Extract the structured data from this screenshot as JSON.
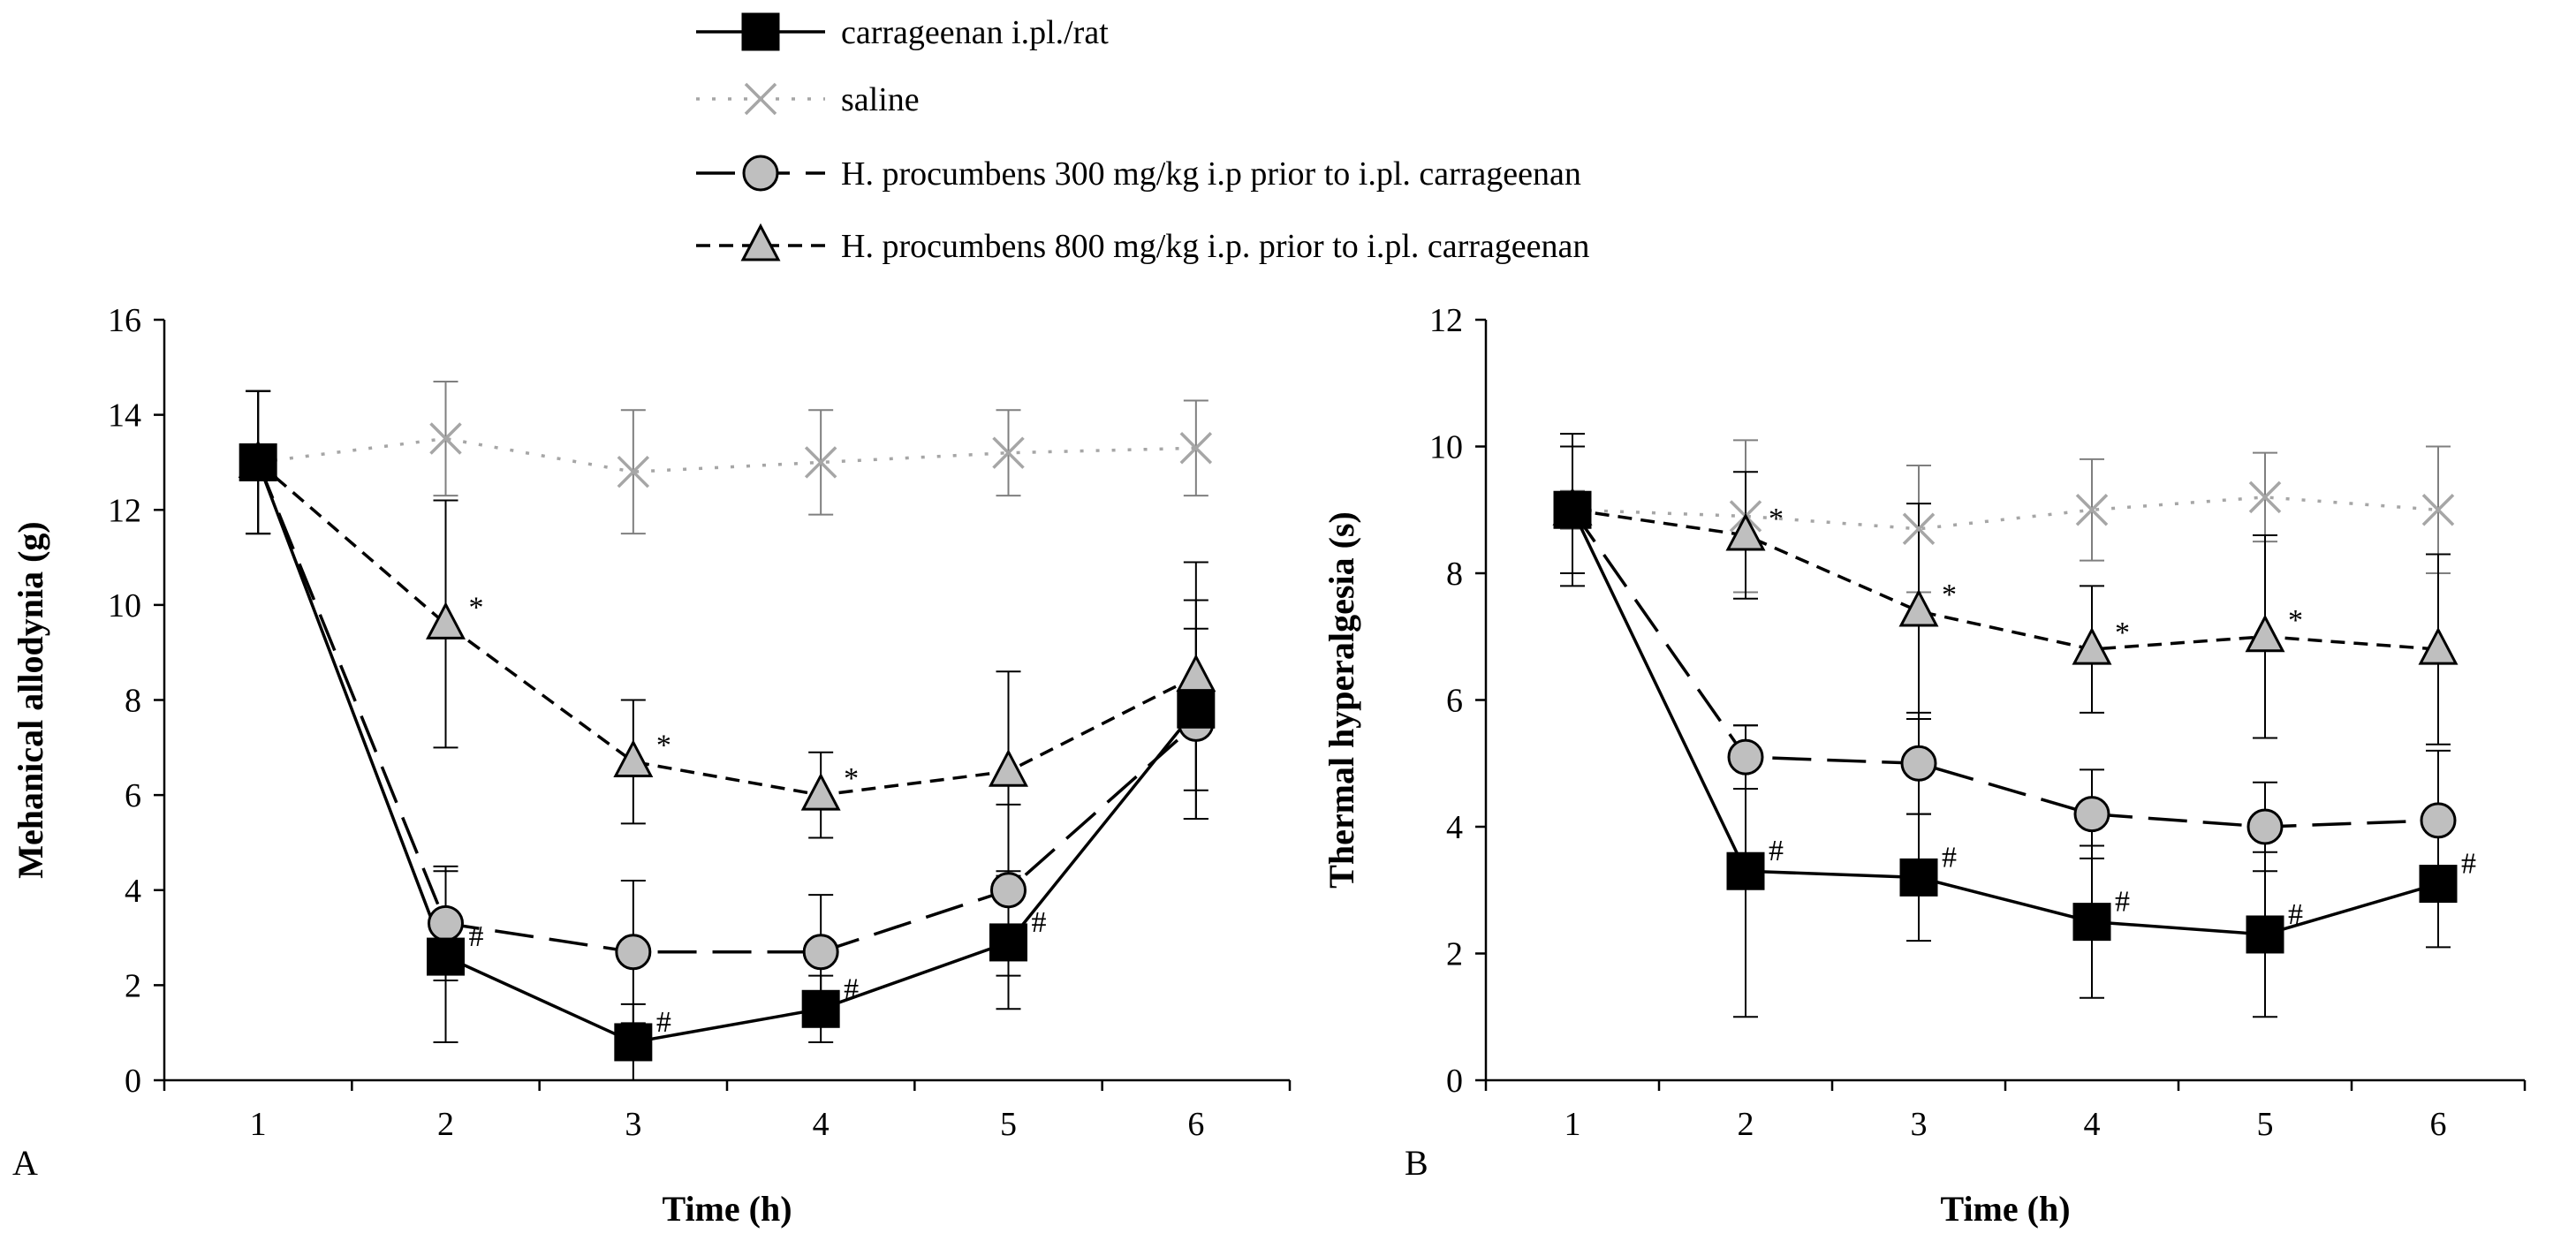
{
  "legend": [
    {
      "key": "carrageenan",
      "label": "carrageenan i.pl./rat"
    },
    {
      "key": "saline",
      "label": "saline"
    },
    {
      "key": "hp300",
      "label": "H. procumbens 300 mg/kg i.p prior to i.pl. carrageenan"
    },
    {
      "key": "hp800",
      "label": "H. procumbens 800 mg/kg i.p. prior to i.pl. carrageenan"
    }
  ],
  "series_styles": {
    "carrageenan": {
      "line": "solid",
      "marker": "square",
      "fill": "#000000",
      "stroke": "#000000"
    },
    "saline": {
      "line": "dotted",
      "marker": "cross",
      "fill": "none",
      "stroke": "#a6a6a6"
    },
    "hp300": {
      "line": "longdash",
      "marker": "circle",
      "fill": "#bfbfbf",
      "stroke": "#000000"
    },
    "hp800": {
      "line": "shortdash",
      "marker": "triangle",
      "fill": "#bfbfbf",
      "stroke": "#000000"
    }
  },
  "chart_data": [
    {
      "panel": "A",
      "type": "line",
      "xlabel": "Time (h)",
      "ylabel": "Mehanical allodynia (g)",
      "xlim": [
        0.5,
        6.5
      ],
      "ylim": [
        0,
        16
      ],
      "x_ticks": [
        1,
        2,
        3,
        4,
        5,
        6
      ],
      "y_ticks": [
        0,
        2,
        4,
        6,
        8,
        10,
        12,
        14,
        16
      ],
      "x": [
        1,
        2,
        3,
        4,
        5,
        6
      ],
      "series": [
        {
          "key": "saline",
          "values": [
            13.0,
            13.5,
            12.8,
            13.0,
            13.2,
            13.3
          ],
          "errors": [
            1.5,
            1.2,
            1.3,
            1.1,
            0.9,
            1.0
          ],
          "annotations": [
            "",
            "",
            "",
            "",
            "",
            ""
          ]
        },
        {
          "key": "hp800",
          "values": [
            13.0,
            9.6,
            6.7,
            6.0,
            6.5,
            8.5
          ],
          "errors": [
            1.5,
            2.6,
            1.3,
            0.9,
            2.1,
            2.4
          ],
          "annotations": [
            "",
            "*",
            "*",
            "*",
            "",
            ""
          ]
        },
        {
          "key": "hp300",
          "values": [
            13.0,
            3.3,
            2.7,
            2.7,
            4.0,
            7.5
          ],
          "errors": [
            1.5,
            1.2,
            1.5,
            1.2,
            1.8,
            2.0
          ],
          "annotations": [
            "",
            "",
            "",
            "",
            "",
            ""
          ]
        },
        {
          "key": "carrageenan",
          "values": [
            13.0,
            2.6,
            0.8,
            1.5,
            2.9,
            7.8
          ],
          "errors": [
            1.5,
            1.8,
            0.8,
            0.7,
            1.4,
            2.3
          ],
          "annotations": [
            "",
            "#",
            "#",
            "#",
            "#",
            ""
          ]
        }
      ]
    },
    {
      "panel": "B",
      "type": "line",
      "xlabel": "Time (h)",
      "ylabel": "Thermal hyperalgesia (s)",
      "xlim": [
        0.5,
        6.5
      ],
      "ylim": [
        0,
        12
      ],
      "x_ticks": [
        1,
        2,
        3,
        4,
        5,
        6
      ],
      "y_ticks": [
        0,
        2,
        4,
        6,
        8,
        10,
        12
      ],
      "x": [
        1,
        2,
        3,
        4,
        5,
        6
      ],
      "series": [
        {
          "key": "saline",
          "values": [
            9.0,
            8.9,
            8.7,
            9.0,
            9.2,
            9.0
          ],
          "errors": [
            0.3,
            1.2,
            1.0,
            0.8,
            0.7,
            1.0
          ],
          "annotations": [
            "",
            "",
            "",
            "",
            "",
            ""
          ]
        },
        {
          "key": "hp800",
          "values": [
            9.0,
            8.6,
            7.4,
            6.8,
            7.0,
            6.8
          ],
          "errors": [
            1.2,
            1.0,
            1.7,
            1.0,
            1.6,
            1.5
          ],
          "annotations": [
            "",
            "*",
            "*",
            "*",
            "*",
            ""
          ]
        },
        {
          "key": "hp300",
          "values": [
            9.0,
            5.1,
            5.0,
            4.2,
            4.0,
            4.1
          ],
          "errors": [
            1.0,
            0.5,
            0.8,
            0.7,
            0.7,
            1.1
          ],
          "annotations": [
            "",
            "",
            "",
            "",
            "",
            ""
          ]
        },
        {
          "key": "carrageenan",
          "values": [
            9.0,
            3.3,
            3.2,
            2.5,
            2.3,
            3.1
          ],
          "errors": [
            1.0,
            2.3,
            1.0,
            1.2,
            1.3,
            1.0
          ],
          "annotations": [
            "",
            "#",
            "#",
            "#",
            "#",
            "#"
          ]
        }
      ]
    }
  ]
}
